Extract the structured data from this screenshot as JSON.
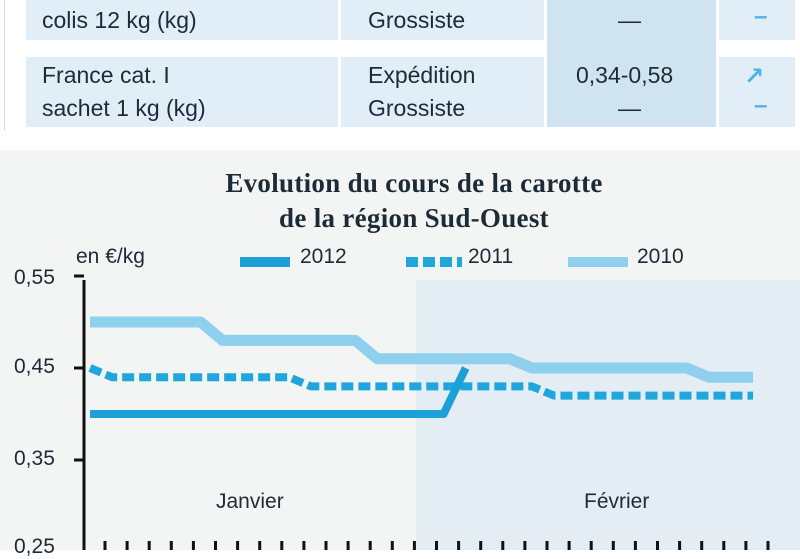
{
  "table": {
    "rows": [
      {
        "product": [
          "colis 12 kg (kg)"
        ],
        "stages": [
          "Grossiste"
        ],
        "prices": [
          "—"
        ],
        "trends": [
          "–"
        ]
      },
      {
        "product": [
          "France cat. I",
          "sachet 1 kg (kg)"
        ],
        "stages": [
          "Expédition",
          "Grossiste"
        ],
        "prices": [
          "0,34-0,58",
          "—"
        ],
        "trends": [
          "↗",
          "–"
        ]
      }
    ]
  },
  "chart_data": {
    "type": "line",
    "title": [
      "Evolution du cours de la carotte",
      "de la région Sud-Ouest"
    ],
    "ylabel": "en €/kg",
    "ylim": [
      0.25,
      0.55
    ],
    "yticks": [
      "0,55",
      "0,45",
      "0,35",
      "0,25"
    ],
    "months": [
      "Janvier",
      "Février"
    ],
    "x_count": 31,
    "series": [
      {
        "name": "2012",
        "style": "solid",
        "color": "#1d9fd8",
        "x": [
          0,
          16,
          17
        ],
        "y": [
          0.4,
          0.4,
          0.45
        ]
      },
      {
        "name": "2011",
        "style": "dashed",
        "color": "#1fa6dc",
        "x": [
          0,
          1,
          9,
          10,
          20,
          21,
          30
        ],
        "y": [
          0.45,
          0.44,
          0.44,
          0.43,
          0.43,
          0.42,
          0.42
        ]
      },
      {
        "name": "2010",
        "style": "solid",
        "color": "#8fd0ee",
        "x": [
          0,
          5,
          6,
          12,
          13,
          19,
          20,
          27,
          28,
          30
        ],
        "y": [
          0.5,
          0.5,
          0.48,
          0.48,
          0.46,
          0.46,
          0.45,
          0.45,
          0.44,
          0.44
        ]
      }
    ],
    "grid": false,
    "legend_position": "top"
  }
}
